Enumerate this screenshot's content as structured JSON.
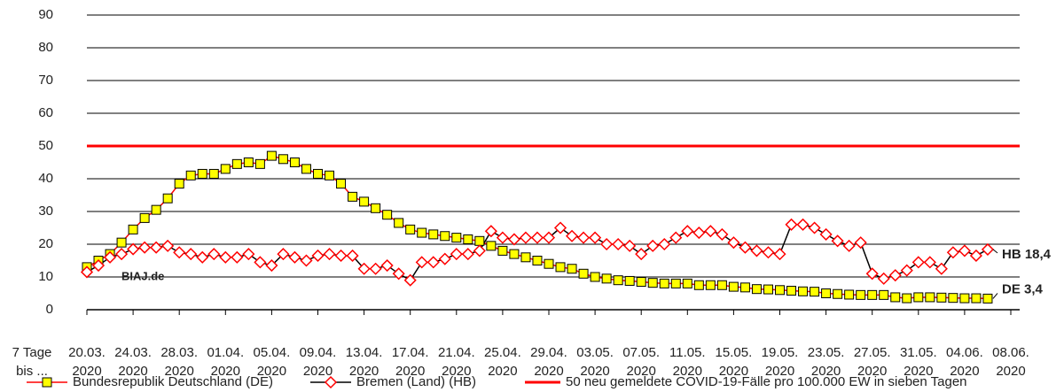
{
  "chart_data": {
    "type": "line",
    "x_label": "7 Tage\nbis ...",
    "categories": [
      "20.03.\n2020",
      null,
      null,
      null,
      "24.03.\n2020",
      null,
      null,
      null,
      "28.03.\n2020",
      null,
      null,
      null,
      "01.04.\n2020",
      null,
      null,
      null,
      "05.04.\n2020",
      null,
      null,
      null,
      "09.04.\n2020",
      null,
      null,
      null,
      "13.04.\n2020",
      null,
      null,
      null,
      "17.04.\n2020",
      null,
      null,
      null,
      "21.04.\n2020",
      null,
      null,
      null,
      "25.04.\n2020",
      null,
      null,
      null,
      "29.04.\n2020",
      null,
      null,
      null,
      "03.05.\n2020",
      null,
      null,
      null,
      "07.05.\n2020",
      null,
      null,
      null,
      "11.05.\n2020",
      null,
      null,
      null,
      "15.05.\n2020",
      null,
      null,
      null,
      "19.05.\n2020",
      null,
      null,
      null,
      "23.05.\n2020",
      null,
      null,
      null,
      "27.05.\n2020",
      null,
      null,
      null,
      "31.05.\n2020",
      null,
      null,
      null,
      "04.06.\n2020",
      null,
      null,
      null,
      "08.06.\n2020"
    ],
    "series": [
      {
        "name": "Bundesrepublik Deutschland (DE)",
        "color": "#ff0000",
        "marker": "square",
        "marker_color": "#ffff00",
        "marker_edge": "#000000",
        "values": [
          13,
          15,
          17,
          20.5,
          24.5,
          28,
          30.5,
          34,
          38.5,
          41,
          41.5,
          41.5,
          43,
          44.5,
          45,
          44.5,
          47,
          46,
          45,
          43,
          41.5,
          41,
          38.5,
          34.5,
          33,
          31,
          29,
          26.5,
          24.5,
          23.5,
          23,
          22.5,
          22,
          21.5,
          21,
          19.5,
          18,
          17,
          16,
          15,
          14,
          13,
          12.5,
          11,
          10,
          9.5,
          9,
          8.8,
          8.5,
          8.2,
          8,
          8,
          8,
          7.5,
          7.5,
          7.5,
          7,
          6.8,
          6.3,
          6.2,
          6,
          5.8,
          5.6,
          5.5,
          5,
          4.8,
          4.6,
          4.5,
          4.5,
          4.5,
          3.8,
          3.5,
          3.8,
          3.8,
          3.7,
          3.6,
          3.5,
          3.5,
          3.4,
          null,
          null
        ]
      },
      {
        "name": "Bremen (Land) (HB)",
        "color": "#000000",
        "marker": "diamond",
        "marker_color": "#ffffff",
        "marker_edge": "#ff0000",
        "values": [
          11.5,
          13.5,
          16,
          17,
          18.5,
          19,
          19,
          19.5,
          17.5,
          17,
          16,
          17,
          16,
          16,
          17,
          14.5,
          13.5,
          17,
          16,
          15,
          16.5,
          17,
          16.5,
          16.5,
          12.5,
          12.5,
          13.5,
          11,
          9,
          14.5,
          14.5,
          15.5,
          17,
          17,
          18,
          24,
          22,
          21.5,
          22,
          22,
          22,
          25,
          22.5,
          22,
          22,
          20,
          20,
          19.5,
          17,
          19.5,
          20,
          22,
          24,
          23.5,
          24,
          23,
          20.5,
          19,
          18,
          17.5,
          17,
          26,
          26,
          25,
          23,
          21,
          19.5,
          20.5,
          11,
          9.5,
          10.5,
          12,
          14.5,
          14.5,
          12.5,
          17.5,
          18,
          16.5,
          18.4,
          null,
          null
        ]
      }
    ],
    "reference_lines": [
      {
        "name": "50 neu gemeldete COVID-19-Fälle pro 100.000 EW in sieben Tagen",
        "value": 50,
        "color": "#ff0000"
      }
    ],
    "annotations": [
      {
        "text": "HB 18,4"
      },
      {
        "text": "DE 3,4"
      },
      {
        "text": "BIAJ.de",
        "color": "#c00000"
      }
    ],
    "ylim": [
      0,
      90
    ],
    "yticks": [
      0,
      10,
      20,
      30,
      40,
      50,
      60,
      70,
      80,
      90
    ],
    "grid": true,
    "legend": "bottom"
  }
}
